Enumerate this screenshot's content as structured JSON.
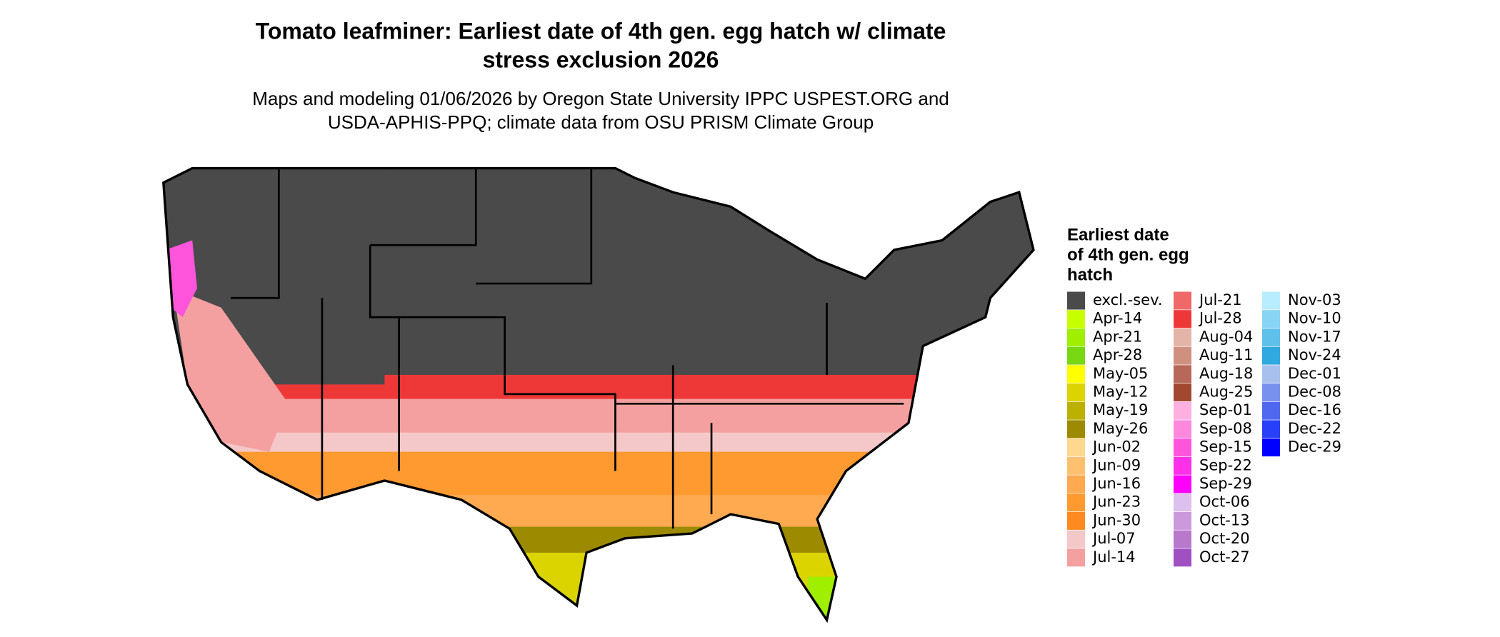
{
  "title": [
    "Tomato leafminer: Earliest date of 4th gen. egg hatch w/ climate",
    "stress exclusion 2026"
  ],
  "subtitle": [
    "Maps and modeling 01/06/2026 by Oregon State University IPPC USPEST.ORG and",
    "USDA-APHIS-PPQ; climate data from OSU PRISM Climate Group"
  ],
  "legend": {
    "title": [
      "Earliest date",
      "of 4th gen. egg",
      "hatch"
    ],
    "items": [
      {
        "label": "excl.-sev.",
        "color": "#4a4a4a"
      },
      {
        "label": "Apr-14",
        "color": "#c8ff00"
      },
      {
        "label": "Apr-21",
        "color": "#a0ee00"
      },
      {
        "label": "Apr-28",
        "color": "#78d814"
      },
      {
        "label": "May-05",
        "color": "#ffff00"
      },
      {
        "label": "May-12",
        "color": "#dcd400"
      },
      {
        "label": "May-19",
        "color": "#bcb000"
      },
      {
        "label": "May-26",
        "color": "#9c8a00"
      },
      {
        "label": "Jun-02",
        "color": "#ffd890"
      },
      {
        "label": "Jun-09",
        "color": "#ffc070"
      },
      {
        "label": "Jun-16",
        "color": "#ffaa50"
      },
      {
        "label": "Jun-23",
        "color": "#ff9a30"
      },
      {
        "label": "Jun-30",
        "color": "#ff8a20"
      },
      {
        "label": "Jul-07",
        "color": "#f4c8c8"
      },
      {
        "label": "Jul-14",
        "color": "#f4a0a0"
      },
      {
        "label": "Jul-21",
        "color": "#f06868"
      },
      {
        "label": "Jul-28",
        "color": "#ee3838"
      },
      {
        "label": "Aug-04",
        "color": "#e4b4a8"
      },
      {
        "label": "Aug-11",
        "color": "#d09080"
      },
      {
        "label": "Aug-18",
        "color": "#b86858"
      },
      {
        "label": "Aug-25",
        "color": "#a04830"
      },
      {
        "label": "Sep-01",
        "color": "#ffb0e0"
      },
      {
        "label": "Sep-08",
        "color": "#ff88dd"
      },
      {
        "label": "Sep-15",
        "color": "#ff55dd"
      },
      {
        "label": "Sep-22",
        "color": "#ff30e8"
      },
      {
        "label": "Sep-29",
        "color": "#ff00ff"
      },
      {
        "label": "Oct-06",
        "color": "#ddc0ee"
      },
      {
        "label": "Oct-13",
        "color": "#cc99dd"
      },
      {
        "label": "Oct-20",
        "color": "#b878cc"
      },
      {
        "label": "Oct-27",
        "color": "#a050c0"
      },
      {
        "label": "Nov-03",
        "color": "#b8ecff"
      },
      {
        "label": "Nov-10",
        "color": "#88d4f4"
      },
      {
        "label": "Nov-17",
        "color": "#60c0ec"
      },
      {
        "label": "Nov-24",
        "color": "#30a8e0"
      },
      {
        "label": "Dec-01",
        "color": "#a8c0ee"
      },
      {
        "label": "Dec-08",
        "color": "#7890ee"
      },
      {
        "label": "Dec-16",
        "color": "#5068f0"
      },
      {
        "label": "Dec-22",
        "color": "#2840f8"
      },
      {
        "label": "Dec-29",
        "color": "#0000ff"
      }
    ]
  }
}
